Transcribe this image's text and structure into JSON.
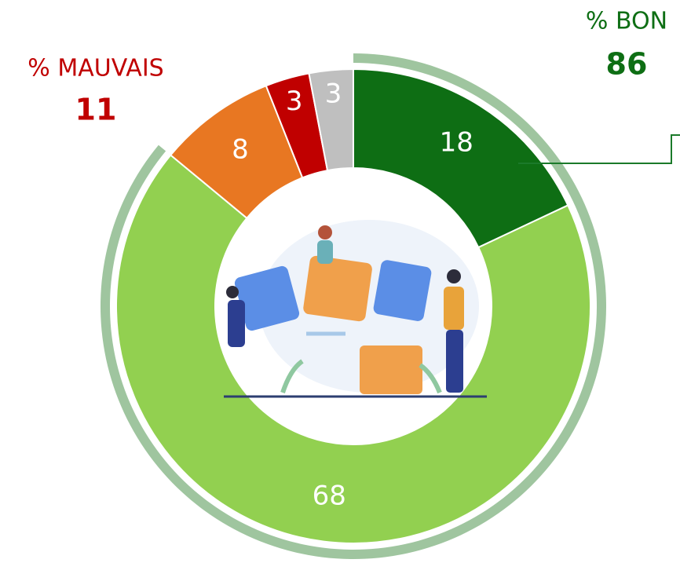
{
  "chart_data": {
    "type": "donut",
    "series": [
      {
        "values": [
          18,
          68,
          8,
          3,
          3
        ],
        "colors": [
          "#0e6e14",
          "#92d050",
          "#e87722",
          "#c00000",
          "#bfbfbf"
        ]
      }
    ],
    "groups": [
      {
        "label": "% BON",
        "value": 86,
        "color": "#0e6e14",
        "ring_color": "#9fc59f"
      },
      {
        "label": "% MAUVAIS",
        "value": 11,
        "color": "#c00000"
      }
    ]
  }
}
